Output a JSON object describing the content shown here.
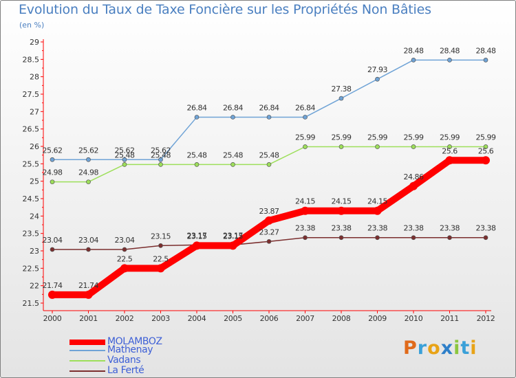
{
  "chart_data": {
    "type": "line",
    "title": "Evolution du Taux de Taxe Foncière sur les Propriétés Non Bâties",
    "subtitle": "(en %)",
    "x": [
      "2000",
      "2001",
      "2002",
      "2003",
      "2004",
      "2005",
      "2006",
      "2007",
      "2008",
      "2009",
      "2010",
      "2011",
      "2012"
    ],
    "ylim": [
      21.5,
      29
    ],
    "yticks": [
      "21.5",
      "22",
      "22.5",
      "23",
      "23.5",
      "24",
      "24.5",
      "25",
      "25.5",
      "26",
      "26.5",
      "27",
      "27.5",
      "28",
      "28.5",
      "29"
    ],
    "grid": false,
    "legend_position": "bottom-left",
    "series": [
      {
        "name": "MOLAMBOZ",
        "color": "#ff0000",
        "emphasis": true,
        "values": [
          21.74,
          21.74,
          22.5,
          22.5,
          23.15,
          23.15,
          23.87,
          24.15,
          24.15,
          24.15,
          24.86,
          25.6,
          25.6
        ],
        "labels": [
          "21.74",
          "21.74",
          "22.5",
          "22.5",
          "23.15",
          "23.15",
          "23.87",
          "24.15",
          "24.15",
          "24.15",
          "24.86",
          "25.6",
          "25.6"
        ]
      },
      {
        "name": "Mathenay",
        "color": "#6fa3d6",
        "emphasis": false,
        "values": [
          25.62,
          25.62,
          25.62,
          25.62,
          26.84,
          26.84,
          26.84,
          26.84,
          27.38,
          27.93,
          28.48,
          28.48,
          28.48
        ],
        "labels": [
          "25.62",
          "25.62",
          "25.62",
          "25.62",
          "26.84",
          "26.84",
          "26.84",
          "26.84",
          "27.38",
          "27.93",
          "28.48",
          "28.48",
          "28.48"
        ]
      },
      {
        "name": "Vadans",
        "color": "#9ddf5a",
        "emphasis": false,
        "values": [
          24.98,
          24.98,
          25.48,
          25.48,
          25.48,
          25.48,
          25.48,
          25.99,
          25.99,
          25.99,
          25.99,
          25.99,
          25.99
        ],
        "labels": [
          "24.98",
          "24.98",
          "25.48",
          "25.48",
          "25.48",
          "25.48",
          "25.48",
          "25.99",
          "25.99",
          "25.99",
          "25.99",
          "25.99",
          "25.99"
        ]
      },
      {
        "name": "La Ferté",
        "color": "#7b2e2e",
        "emphasis": false,
        "values": [
          23.04,
          23.04,
          23.04,
          23.15,
          23.17,
          23.17,
          23.27,
          23.38,
          23.38,
          23.38,
          23.38,
          23.38,
          23.38
        ],
        "labels": [
          "23.04",
          "23.04",
          "23.04",
          "23.15",
          "23.17",
          "23.17",
          "23.27",
          "23.38",
          "23.38",
          "23.38",
          "23.38",
          "23.38",
          "23.38"
        ]
      }
    ]
  },
  "logo": {
    "letters": [
      "P",
      "r",
      "o",
      "x",
      "i",
      "t",
      "i"
    ],
    "colors": [
      "#e06a1a",
      "#3aa0d8",
      "#e8a317",
      "#2e7fc9",
      "#8cc63f",
      "#3aa0d8",
      "#e8a317"
    ]
  }
}
